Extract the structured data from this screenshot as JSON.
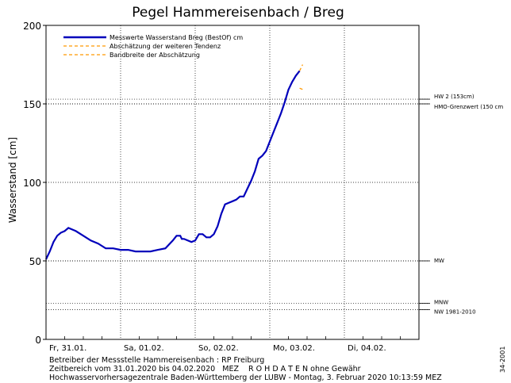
{
  "chart_data": {
    "type": "line",
    "title": "Pegel Hammereisenbach / Breg",
    "ylabel": "Wasserstand [cm]",
    "ylim": [
      0,
      200
    ],
    "yticks": [
      0,
      50,
      100,
      150,
      200
    ],
    "y_tick_labels": [
      "0",
      "50",
      "100",
      "150",
      "200"
    ],
    "xlim": [
      0,
      5
    ],
    "x_day_labels": [
      "Fr, 31.01.",
      "Sa, 01.02.",
      "So, 02.02.",
      "Mo, 03.02.",
      "Di, 04.02."
    ],
    "grid": true,
    "legend": [
      {
        "label": "Messwerte Wasserstand Breg  (BestOf)  cm",
        "style": "solid",
        "color": "#0000bb"
      },
      {
        "label": "Abschätzung der weiteren Tendenz",
        "style": "dashed",
        "color": "#ff9900"
      },
      {
        "label": "Bandbreite der Abschätzung",
        "style": "dashed",
        "color": "#ff9900"
      }
    ],
    "series": [
      {
        "name": "Messwerte Wasserstand Breg  (BestOf)  cm",
        "color": "#0000bb",
        "x": [
          0.0,
          0.05,
          0.1,
          0.15,
          0.2,
          0.25,
          0.3,
          0.4,
          0.5,
          0.6,
          0.7,
          0.8,
          0.9,
          1.0,
          1.1,
          1.2,
          1.3,
          1.4,
          1.5,
          1.6,
          1.7,
          1.75,
          1.8,
          1.82,
          1.85,
          1.9,
          1.95,
          2.0,
          2.05,
          2.1,
          2.15,
          2.2,
          2.25,
          2.3,
          2.35,
          2.4,
          2.45,
          2.5,
          2.55,
          2.6,
          2.65,
          2.7,
          2.75,
          2.8,
          2.85,
          2.9,
          2.95,
          3.0,
          3.05,
          3.1,
          3.15,
          3.2,
          3.25,
          3.3,
          3.35,
          3.4
        ],
        "values": [
          51,
          56,
          62,
          66,
          68,
          69,
          71,
          69,
          66,
          63,
          61,
          58,
          58,
          57,
          57,
          56,
          56,
          56,
          57,
          58,
          63,
          66,
          66,
          64,
          64,
          63,
          62,
          63,
          67,
          67,
          65,
          65,
          67,
          72,
          80,
          86,
          87,
          88,
          89,
          91,
          91,
          96,
          101,
          107,
          115,
          117,
          120,
          126,
          132,
          138,
          144,
          151,
          159,
          164,
          168,
          171
        ]
      },
      {
        "name": "Abschätzung der weiteren Tendenz",
        "color": "#ff9900",
        "x": [
          3.4,
          3.44
        ],
        "values": [
          171,
          175
        ]
      },
      {
        "name": "Bandbreite der Abschätzung",
        "color": "#ff9900",
        "x": [
          3.4,
          3.45
        ],
        "values": [
          160,
          159
        ]
      }
    ],
    "reference_lines": [
      {
        "value": 153,
        "label": "HW 2 (153cm)"
      },
      {
        "value": 150,
        "label": "HMO-Grenzwert (150 cm"
      },
      {
        "value": 50,
        "label": "MW"
      },
      {
        "value": 23,
        "label": "MNW"
      },
      {
        "value": 19,
        "label": "NW 1981-2010"
      }
    ]
  },
  "footer": {
    "line1": "Betreiber der Messstelle Hammereisenbach : RP Freiburg",
    "line2": "Zeitbereich vom 31.01.2020 bis 04.02.2020   MEZ    R O H D A T E N ohne Gewähr",
    "line3": "Hochwasservorhersagezentrale Baden-Württemberg der LUBW - Montag, 3. Februar 2020 10:13:59 MEZ"
  },
  "side_note": "34-2001"
}
